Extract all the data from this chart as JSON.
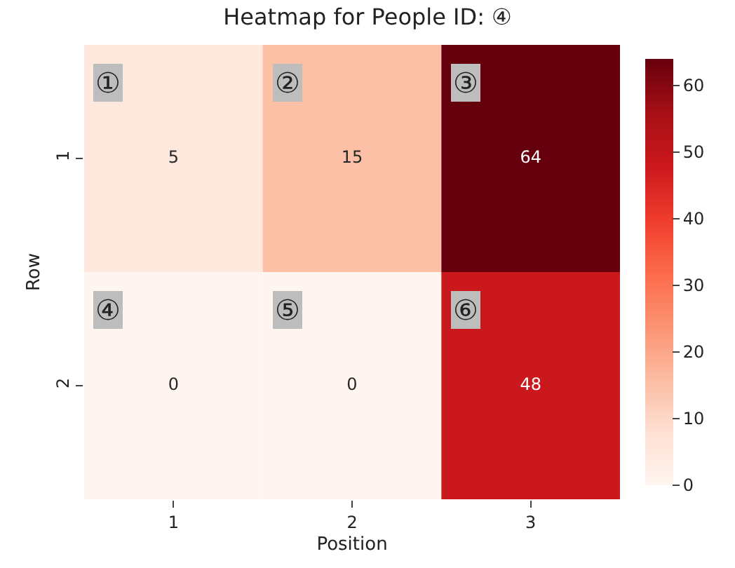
{
  "chart_data": {
    "type": "heatmap",
    "title": "Heatmap for People ID: ④",
    "xlabel": "Position",
    "ylabel": "Row",
    "categories": [
      "1",
      "2",
      "3"
    ],
    "y_categories": [
      "1",
      "2"
    ],
    "cells": [
      [
        5,
        15,
        64
      ],
      [
        0,
        0,
        48
      ]
    ],
    "data_labels": true,
    "clim": [
      0,
      64
    ],
    "cticks": [
      0,
      10,
      20,
      30,
      40,
      50,
      60
    ],
    "annotations": [
      "①",
      "②",
      "③",
      "④",
      "⑤",
      "⑥"
    ]
  }
}
